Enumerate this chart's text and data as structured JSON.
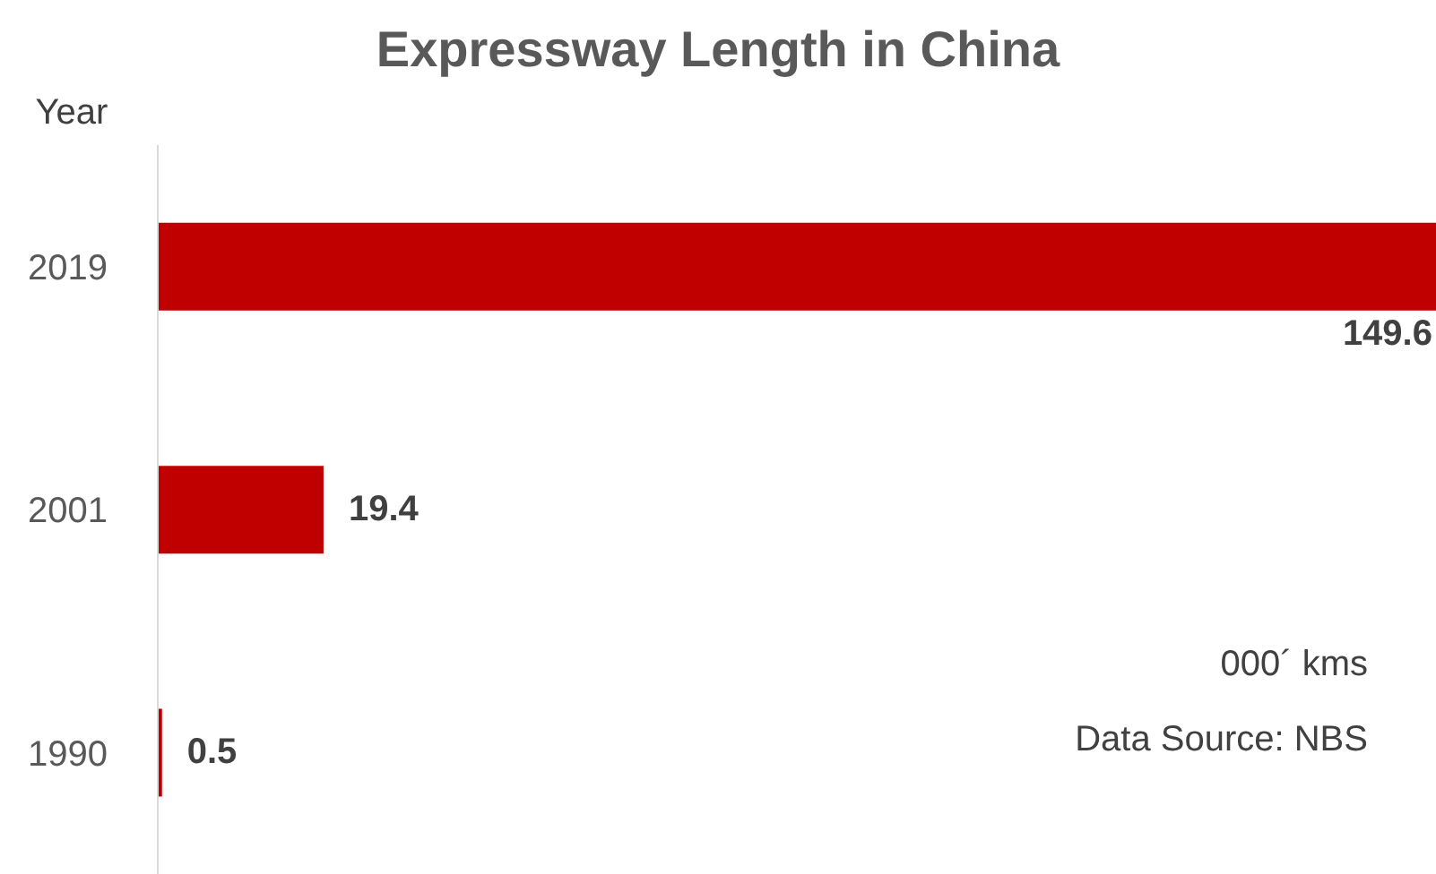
{
  "chart_data": {
    "type": "bar",
    "orientation": "horizontal",
    "title": "Expressway Length in China",
    "ylabel": "Year",
    "categories": [
      "2019",
      "2001",
      "1990"
    ],
    "values": [
      149.6,
      19.4,
      0.5
    ],
    "color": "#c00000",
    "data_labels": true,
    "annotations": [
      "000´ kms",
      "Data Source: NBS"
    ]
  }
}
